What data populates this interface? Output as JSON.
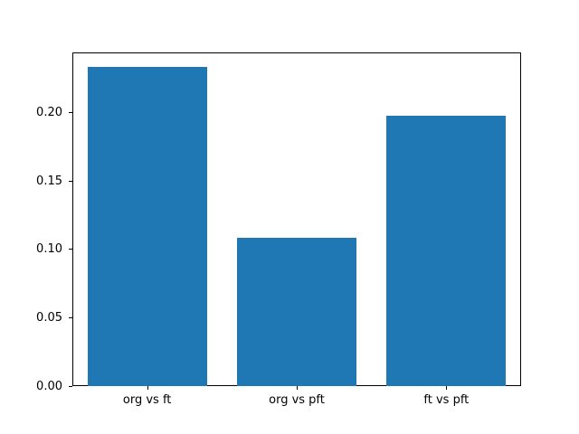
{
  "chart_data": {
    "type": "bar",
    "categories": [
      "org vs ft",
      "org vs pft",
      "ft vs pft"
    ],
    "values": [
      0.233,
      0.108,
      0.197
    ],
    "ylim": [
      0,
      0.2434
    ],
    "xlim": [
      -0.5,
      2.5
    ],
    "bar_width_units": 0.8,
    "yticks": {
      "values": [
        0.0,
        0.05,
        0.1,
        0.15,
        0.2
      ],
      "labels": [
        "0.00",
        "0.05",
        "0.10",
        "0.15",
        "0.20"
      ]
    },
    "grid": false,
    "legend": false,
    "bar_color": "#1f77b4",
    "spine_color": "#000000",
    "background_color": "#ffffff"
  }
}
